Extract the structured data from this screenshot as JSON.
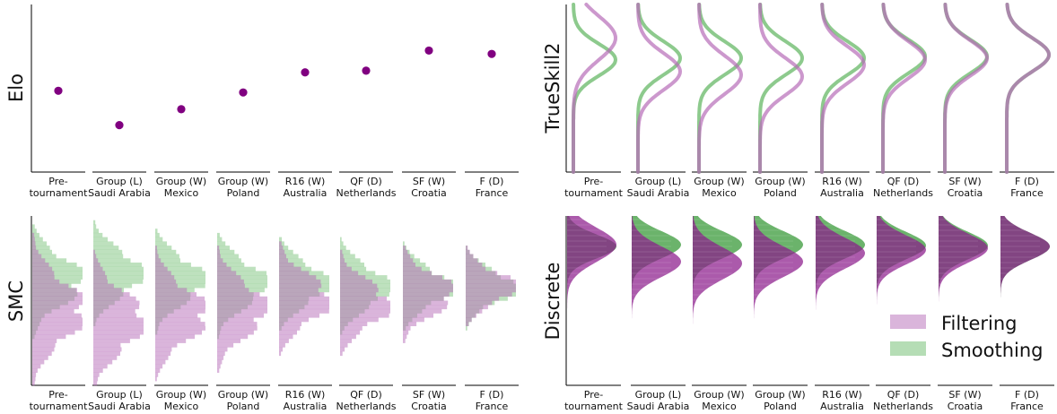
{
  "figure": {
    "categories": [
      [
        "Pre-",
        "tournament"
      ],
      [
        "Group (L)",
        "Saudi Arabia"
      ],
      [
        "Group (W)",
        "Mexico"
      ],
      [
        "Group (W)",
        "Poland"
      ],
      [
        "R16 (W)",
        "Australia"
      ],
      [
        "QF (D)",
        "Netherlands"
      ],
      [
        "SF (W)",
        "Croatia"
      ],
      [
        "F (D)",
        "France"
      ]
    ],
    "colors": {
      "filtering": "#b66cb8",
      "smoothing": "#5cb35c",
      "elo_point": "#800080",
      "overlap": "#7d5a7d"
    }
  },
  "legend": {
    "filtering_label": "Filtering",
    "smoothing_label": "Smoothing"
  },
  "chart_data": [
    {
      "type": "scatter",
      "ylabel": "Elo",
      "categories": [
        "Pre-tournament",
        "Group (L) Saudi Arabia",
        "Group (W) Mexico",
        "Group (W) Poland",
        "R16 (W) Australia",
        "QF (D) Netherlands",
        "SF (W) Croatia",
        "F (D) France"
      ],
      "values": [
        0.485,
        0.28,
        0.375,
        0.475,
        0.595,
        0.605,
        0.725,
        0.705
      ],
      "ylim": [
        0,
        1
      ]
    },
    {
      "type": "line",
      "ylabel": "TrueSkill2",
      "note_units": "normal density per stage; mu as fraction of axis height from top, sd as fraction of axis height",
      "filtering": {
        "mu": [
          0.2,
          0.4,
          0.42,
          0.43,
          0.36,
          0.33,
          0.32,
          0.3
        ],
        "sd": [
          0.13,
          0.11,
          0.115,
          0.11,
          0.11,
          0.11,
          0.105,
          0.1
        ]
      },
      "smoothing": {
        "mu": [
          0.33,
          0.32,
          0.32,
          0.32,
          0.32,
          0.31,
          0.31,
          0.3
        ],
        "sd": [
          0.095,
          0.1,
          0.1,
          0.1,
          0.1,
          0.1,
          0.1,
          0.1
        ]
      },
      "ylim": [
        0,
        1
      ]
    },
    {
      "type": "bar",
      "ylabel": "SMC",
      "note_units": "histogram per stage; mu as fraction of axis height from top",
      "filtering": {
        "mu": [
          0.56,
          0.62,
          0.58,
          0.55,
          0.49,
          0.52,
          0.46,
          0.42
        ],
        "sd": [
          0.17,
          0.16,
          0.15,
          0.14,
          0.13,
          0.12,
          0.11,
          0.09
        ]
      },
      "smoothing": {
        "mu": [
          0.38,
          0.34,
          0.38,
          0.4,
          0.4,
          0.42,
          0.42,
          0.42
        ],
        "sd": [
          0.13,
          0.12,
          0.12,
          0.12,
          0.11,
          0.11,
          0.1,
          0.09
        ]
      },
      "ylim": [
        0,
        1
      ]
    },
    {
      "type": "area",
      "ylabel": "Discrete",
      "note_units": "discrete density per stage; mu as fraction of axis height from top",
      "filtering": {
        "mu": [
          0.17,
          0.27,
          0.28,
          0.27,
          0.22,
          0.2,
          0.19,
          0.18
        ],
        "sd": [
          0.1,
          0.09,
          0.095,
          0.09,
          0.09,
          0.085,
          0.085,
          0.08
        ]
      },
      "smoothing": {
        "mu": [
          0.18,
          0.17,
          0.17,
          0.17,
          0.17,
          0.175,
          0.175,
          0.18
        ],
        "sd": [
          0.07,
          0.08,
          0.08,
          0.08,
          0.08,
          0.08,
          0.08,
          0.08
        ]
      },
      "ylim": [
        0,
        1
      ]
    }
  ]
}
